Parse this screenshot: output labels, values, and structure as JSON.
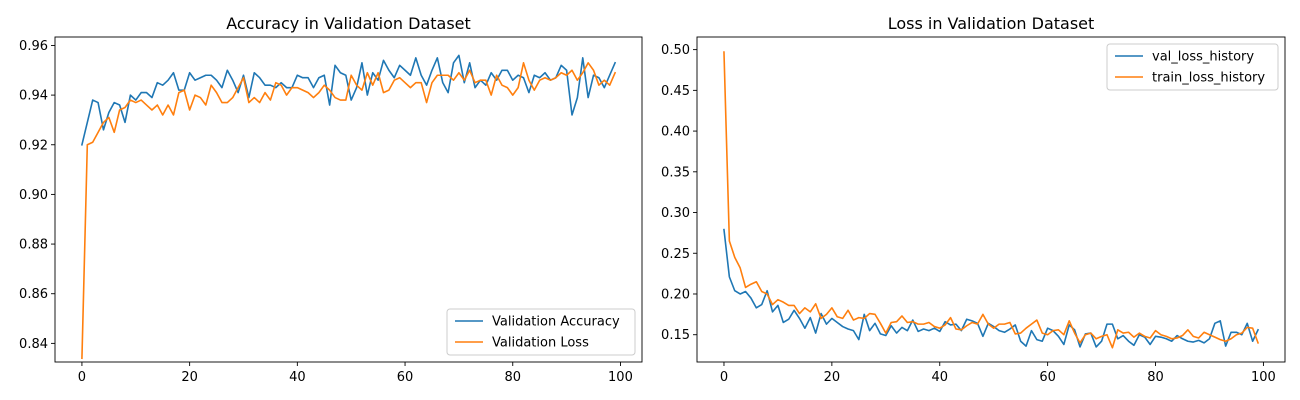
{
  "chart_data": [
    {
      "type": "line",
      "title": "Accuracy in Validation Dataset",
      "xlabel": "",
      "ylabel": "",
      "xlim": [
        -5,
        104
      ],
      "ylim": [
        0.8325,
        0.9634
      ],
      "xticks": [
        0,
        20,
        40,
        60,
        80,
        100
      ],
      "xtick_labels": [
        "0",
        "20",
        "40",
        "60",
        "80",
        "100"
      ],
      "yticks": [
        0.84,
        0.86,
        0.88,
        0.9,
        0.92,
        0.94,
        0.96
      ],
      "ytick_labels": [
        "0.84",
        "0.86",
        "0.88",
        "0.90",
        "0.92",
        "0.94",
        "0.96"
      ],
      "grid": false,
      "legend_position": "lower-right",
      "series": [
        {
          "name": "Validation Accuracy",
          "color": "#1f77b4",
          "x_start": 0,
          "values": [
            0.92,
            0.929,
            0.938,
            0.937,
            0.926,
            0.933,
            0.937,
            0.936,
            0.929,
            0.94,
            0.938,
            0.941,
            0.941,
            0.939,
            0.945,
            0.944,
            0.946,
            0.949,
            0.942,
            0.942,
            0.949,
            0.946,
            0.947,
            0.948,
            0.948,
            0.946,
            0.943,
            0.95,
            0.946,
            0.941,
            0.948,
            0.939,
            0.949,
            0.947,
            0.944,
            0.944,
            0.943,
            0.945,
            0.943,
            0.943,
            0.948,
            0.947,
            0.947,
            0.943,
            0.947,
            0.948,
            0.936,
            0.952,
            0.949,
            0.948,
            0.938,
            0.943,
            0.953,
            0.94,
            0.949,
            0.946,
            0.954,
            0.95,
            0.947,
            0.952,
            0.95,
            0.948,
            0.955,
            0.948,
            0.944,
            0.95,
            0.955,
            0.945,
            0.941,
            0.953,
            0.956,
            0.945,
            0.953,
            0.943,
            0.946,
            0.944,
            0.949,
            0.946,
            0.95,
            0.95,
            0.946,
            0.948,
            0.947,
            0.941,
            0.948,
            0.947,
            0.949,
            0.946,
            0.947,
            0.952,
            0.95,
            0.932,
            0.939,
            0.955,
            0.939,
            0.948,
            0.947,
            0.943,
            0.948,
            0.953
          ]
        },
        {
          "name": "Validation Loss",
          "color": "#ff7f0e",
          "x_start": 0,
          "values": [
            0.834,
            0.92,
            0.921,
            0.925,
            0.929,
            0.931,
            0.925,
            0.934,
            0.935,
            0.938,
            0.937,
            0.938,
            0.936,
            0.934,
            0.936,
            0.932,
            0.936,
            0.932,
            0.941,
            0.942,
            0.934,
            0.94,
            0.939,
            0.936,
            0.944,
            0.941,
            0.937,
            0.937,
            0.939,
            0.943,
            0.947,
            0.937,
            0.939,
            0.937,
            0.941,
            0.938,
            0.945,
            0.944,
            0.94,
            0.943,
            0.943,
            0.942,
            0.941,
            0.939,
            0.941,
            0.944,
            0.942,
            0.939,
            0.938,
            0.938,
            0.948,
            0.944,
            0.942,
            0.949,
            0.944,
            0.949,
            0.941,
            0.942,
            0.946,
            0.947,
            0.945,
            0.943,
            0.945,
            0.945,
            0.937,
            0.945,
            0.948,
            0.948,
            0.948,
            0.946,
            0.949,
            0.946,
            0.95,
            0.945,
            0.946,
            0.946,
            0.94,
            0.948,
            0.944,
            0.943,
            0.94,
            0.943,
            0.953,
            0.946,
            0.942,
            0.946,
            0.947,
            0.946,
            0.947,
            0.949,
            0.948,
            0.95,
            0.946,
            0.949,
            0.953,
            0.95,
            0.944,
            0.946,
            0.944,
            0.949
          ]
        }
      ]
    },
    {
      "type": "line",
      "title": "Loss in Validation Dataset",
      "xlabel": "",
      "ylabel": "",
      "xlim": [
        -5,
        104
      ],
      "ylim": [
        0.1165,
        0.5155
      ],
      "xticks": [
        0,
        20,
        40,
        60,
        80,
        100
      ],
      "xtick_labels": [
        "0",
        "20",
        "40",
        "60",
        "80",
        "100"
      ],
      "yticks": [
        0.15,
        0.2,
        0.25,
        0.3,
        0.35,
        0.4,
        0.45,
        0.5
      ],
      "ytick_labels": [
        "0.15",
        "0.20",
        "0.25",
        "0.30",
        "0.35",
        "0.40",
        "0.45",
        "0.50"
      ],
      "grid": false,
      "legend_position": "upper-right",
      "series": [
        {
          "name": "val_loss_history",
          "color": "#1f77b4",
          "x_start": 0,
          "values": [
            0.279,
            0.221,
            0.204,
            0.2,
            0.203,
            0.195,
            0.183,
            0.187,
            0.204,
            0.178,
            0.186,
            0.165,
            0.169,
            0.18,
            0.17,
            0.158,
            0.171,
            0.152,
            0.176,
            0.163,
            0.17,
            0.165,
            0.16,
            0.157,
            0.155,
            0.144,
            0.175,
            0.155,
            0.164,
            0.151,
            0.149,
            0.161,
            0.152,
            0.159,
            0.155,
            0.168,
            0.154,
            0.157,
            0.155,
            0.158,
            0.154,
            0.166,
            0.162,
            0.163,
            0.155,
            0.169,
            0.167,
            0.164,
            0.148,
            0.164,
            0.16,
            0.155,
            0.153,
            0.157,
            0.162,
            0.142,
            0.136,
            0.155,
            0.144,
            0.142,
            0.158,
            0.155,
            0.148,
            0.138,
            0.162,
            0.156,
            0.135,
            0.151,
            0.152,
            0.135,
            0.142,
            0.163,
            0.163,
            0.145,
            0.149,
            0.142,
            0.137,
            0.15,
            0.147,
            0.138,
            0.148,
            0.147,
            0.145,
            0.142,
            0.149,
            0.145,
            0.142,
            0.141,
            0.143,
            0.14,
            0.145,
            0.164,
            0.167,
            0.136,
            0.153,
            0.153,
            0.15,
            0.164,
            0.142,
            0.156
          ]
        },
        {
          "name": "train_loss_history",
          "color": "#ff7f0e",
          "x_start": 0,
          "values": [
            0.497,
            0.265,
            0.245,
            0.232,
            0.208,
            0.212,
            0.215,
            0.203,
            0.2,
            0.187,
            0.193,
            0.19,
            0.186,
            0.186,
            0.176,
            0.183,
            0.178,
            0.188,
            0.17,
            0.175,
            0.183,
            0.172,
            0.17,
            0.18,
            0.168,
            0.171,
            0.17,
            0.176,
            0.175,
            0.164,
            0.152,
            0.165,
            0.166,
            0.173,
            0.165,
            0.166,
            0.163,
            0.163,
            0.165,
            0.16,
            0.158,
            0.162,
            0.171,
            0.157,
            0.156,
            0.161,
            0.165,
            0.163,
            0.175,
            0.163,
            0.158,
            0.163,
            0.163,
            0.165,
            0.151,
            0.152,
            0.158,
            0.163,
            0.168,
            0.152,
            0.15,
            0.155,
            0.156,
            0.15,
            0.167,
            0.152,
            0.14,
            0.15,
            0.152,
            0.145,
            0.148,
            0.15,
            0.134,
            0.156,
            0.152,
            0.153,
            0.147,
            0.152,
            0.148,
            0.146,
            0.155,
            0.15,
            0.148,
            0.145,
            0.146,
            0.149,
            0.156,
            0.148,
            0.146,
            0.153,
            0.15,
            0.147,
            0.144,
            0.142,
            0.145,
            0.15,
            0.152,
            0.159,
            0.158,
            0.14
          ]
        }
      ]
    }
  ]
}
